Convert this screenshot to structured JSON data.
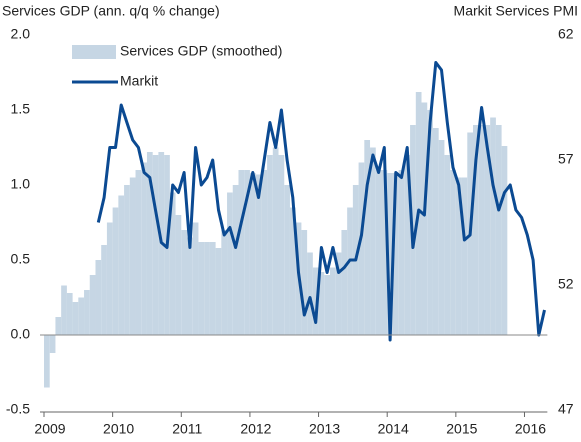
{
  "chart_data": {
    "type": "bar-line",
    "y_title": "Services GDP (ann. q/q % change)",
    "y2_title": "Markit Services PMI",
    "categories": [
      "2009",
      null,
      null,
      null,
      null,
      null,
      null,
      null,
      null,
      null,
      null,
      null,
      "2010",
      null,
      null,
      null,
      null,
      null,
      null,
      null,
      null,
      null,
      null,
      null,
      "2011",
      null,
      null,
      null,
      null,
      null,
      null,
      null,
      null,
      null,
      null,
      null,
      "2012",
      null,
      null,
      null,
      null,
      null,
      null,
      null,
      null,
      null,
      null,
      null,
      "2013",
      null,
      null,
      null,
      null,
      null,
      null,
      null,
      null,
      null,
      null,
      null,
      "2014",
      null,
      null,
      null,
      null,
      null,
      null,
      null,
      null,
      null,
      null,
      null,
      "2015",
      null,
      null,
      null,
      null,
      null,
      null,
      null,
      null,
      null,
      null,
      null,
      "2016",
      null,
      null,
      null
    ],
    "series": [
      {
        "name": "Services GDP (smoothed)",
        "type": "bar",
        "color": "#c6d6e4",
        "values": [
          -0.35,
          -0.12,
          0.12,
          0.33,
          0.28,
          0.22,
          0.25,
          0.3,
          0.4,
          0.5,
          0.6,
          0.75,
          0.85,
          0.93,
          1.0,
          1.05,
          1.1,
          1.15,
          1.22,
          1.2,
          1.22,
          1.2,
          0.95,
          0.8,
          0.7,
          0.65,
          0.75,
          0.62,
          0.62,
          0.62,
          0.58,
          0.7,
          0.95,
          1.0,
          1.1,
          1.1,
          1.08,
          1.07,
          1.1,
          1.2,
          1.25,
          1.2,
          1.0,
          0.85,
          0.75,
          0.7,
          0.55,
          0.45,
          0.42,
          0.4,
          0.45,
          0.55,
          0.7,
          0.85,
          1.0,
          1.15,
          1.3,
          1.25,
          1.1,
          1.1,
          1.08,
          1.08,
          1.1,
          1.2,
          1.4,
          1.62,
          1.55,
          1.5,
          1.38,
          1.3,
          1.2,
          1.1,
          1.05,
          1.05,
          1.35,
          1.4,
          1.4,
          1.4,
          1.45,
          1.4,
          1.26,
          null,
          null,
          null,
          null,
          null,
          null,
          null
        ]
      },
      {
        "name": "Markit",
        "type": "line",
        "axis": "y2",
        "color": "#0b4a92",
        "values": [
          null,
          null,
          null,
          null,
          null,
          null,
          null,
          null,
          null,
          54.5,
          55.5,
          57.5,
          57.5,
          59.2,
          58.5,
          57.8,
          57.5,
          56.5,
          56.3,
          55.0,
          53.7,
          53.5,
          56.0,
          55.7,
          56.5,
          53.5,
          57.5,
          56.0,
          56.3,
          57.0,
          55.0,
          54.0,
          54.3,
          53.5,
          54.5,
          55.5,
          56.5,
          55.5,
          57.0,
          58.5,
          57.5,
          59.0,
          57.0,
          55.5,
          52.5,
          50.8,
          51.5,
          50.5,
          53.5,
          52.5,
          53.5,
          52.5,
          52.7,
          53.0,
          53.0,
          54.0,
          56.0,
          57.2,
          56.5,
          57.5,
          49.8,
          56.5,
          56.3,
          57.5,
          53.5,
          55.0,
          54.8,
          58.5,
          60.9,
          60.6,
          58.5,
          56.7,
          56.0,
          53.8,
          54.0,
          57.0,
          59.1,
          57.5,
          56.0,
          55.0,
          55.7,
          56.0,
          55.0,
          54.7,
          54.0,
          53.0,
          50.0,
          51.0
        ]
      }
    ],
    "ylim": [
      -0.5,
      2.0
    ],
    "yticks": [
      {
        "value": -0.5,
        "label": "-0.5"
      },
      {
        "value": 0,
        "label": "0.0"
      },
      {
        "value": 0.5,
        "label": "0.5"
      },
      {
        "value": 1.0,
        "label": "1.0"
      },
      {
        "value": 1.5,
        "label": "1.5"
      },
      {
        "value": 2.0,
        "label": "2.0"
      }
    ],
    "y2lim": [
      47,
      62
    ],
    "y2ticks": [
      47,
      52,
      57,
      62
    ],
    "legend": "top-left"
  }
}
